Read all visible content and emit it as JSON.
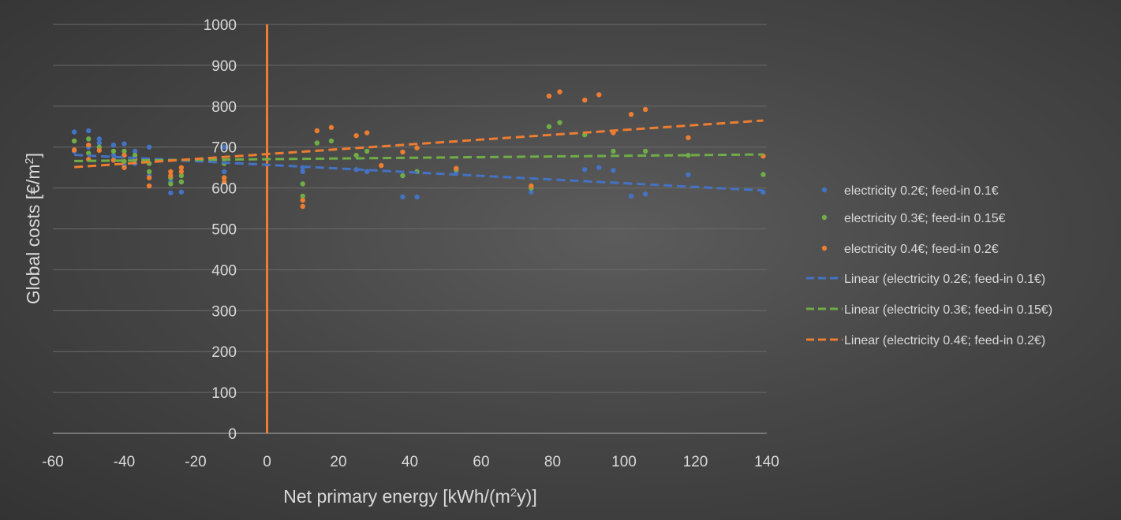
{
  "chart_data": {
    "type": "scatter",
    "xlabel": {
      "pre": "Net  primary energy [kWh/(m",
      "sup": "2",
      "post": "y)]"
    },
    "ylabel": {
      "pre": "Global costs [€/m",
      "sup": "2",
      "post": "]"
    },
    "xlim": [
      -60,
      140
    ],
    "ylim": [
      0,
      1000
    ],
    "xticks": [
      -60,
      -40,
      -20,
      0,
      20,
      40,
      60,
      80,
      100,
      120,
      140
    ],
    "yticks": [
      0,
      100,
      200,
      300,
      400,
      500,
      600,
      700,
      800,
      900,
      1000
    ],
    "grid": true,
    "legend_position": "right",
    "vertical_marker": {
      "x": 0,
      "y_range": [
        0,
        1000
      ],
      "color": "#ed7d31"
    },
    "series": [
      {
        "name": "electricity 0.2€; feed-in 0.1€",
        "color": "#4472c4",
        "points": [
          [
            -54,
            737
          ],
          [
            -54,
            690
          ],
          [
            -50,
            740
          ],
          [
            -50,
            700
          ],
          [
            -47,
            720
          ],
          [
            -47,
            710
          ],
          [
            -43,
            705
          ],
          [
            -43,
            680
          ],
          [
            -40,
            708
          ],
          [
            -40,
            655
          ],
          [
            -37,
            690
          ],
          [
            -37,
            660
          ],
          [
            -33,
            700
          ],
          [
            -33,
            630
          ],
          [
            -27,
            615
          ],
          [
            -27,
            588
          ],
          [
            -24,
            615
          ],
          [
            -24,
            590
          ],
          [
            -12,
            700
          ],
          [
            -12,
            640
          ],
          [
            10,
            650
          ],
          [
            10,
            640
          ],
          [
            25,
            645
          ],
          [
            28,
            640
          ],
          [
            38,
            578
          ],
          [
            42,
            578
          ],
          [
            53,
            640
          ],
          [
            74,
            590
          ],
          [
            89,
            645
          ],
          [
            93,
            650
          ],
          [
            97,
            643
          ],
          [
            102,
            580
          ],
          [
            106,
            585
          ],
          [
            118,
            632
          ],
          [
            139,
            590
          ]
        ],
        "trend_name": "Linear (electricity 0.2€; feed-in 0.1€)",
        "trend": [
          [
            -54,
            681
          ],
          [
            139,
            594
          ]
        ]
      },
      {
        "name": "electricity 0.3€; feed-in 0.15€",
        "color": "#70ad47",
        "points": [
          [
            -54,
            715
          ],
          [
            -50,
            720
          ],
          [
            -50,
            685
          ],
          [
            -47,
            700
          ],
          [
            -43,
            690
          ],
          [
            -40,
            690
          ],
          [
            -40,
            665
          ],
          [
            -37,
            680
          ],
          [
            -33,
            660
          ],
          [
            -33,
            640
          ],
          [
            -27,
            625
          ],
          [
            -27,
            610
          ],
          [
            -24,
            630
          ],
          [
            -24,
            615
          ],
          [
            -12,
            660
          ],
          [
            -12,
            625
          ],
          [
            10,
            610
          ],
          [
            10,
            580
          ],
          [
            14,
            710
          ],
          [
            18,
            715
          ],
          [
            25,
            680
          ],
          [
            28,
            690
          ],
          [
            38,
            630
          ],
          [
            42,
            640
          ],
          [
            53,
            645
          ],
          [
            74,
            600
          ],
          [
            79,
            750
          ],
          [
            82,
            760
          ],
          [
            89,
            730
          ],
          [
            97,
            690
          ],
          [
            106,
            690
          ],
          [
            118,
            680
          ],
          [
            139,
            633
          ]
        ],
        "trend_name": "Linear (electricity 0.3€; feed-in 0.15€)",
        "trend": [
          [
            -54,
            666
          ],
          [
            139,
            682
          ]
        ]
      },
      {
        "name": "electricity 0.4€; feed-in 0.2€",
        "color": "#ed7d31",
        "points": [
          [
            -54,
            693
          ],
          [
            -50,
            705
          ],
          [
            -50,
            670
          ],
          [
            -47,
            692
          ],
          [
            -43,
            668
          ],
          [
            -40,
            680
          ],
          [
            -40,
            650
          ],
          [
            -37,
            670
          ],
          [
            -33,
            625
          ],
          [
            -33,
            605
          ],
          [
            -27,
            640
          ],
          [
            -27,
            630
          ],
          [
            -24,
            650
          ],
          [
            -24,
            640
          ],
          [
            -12,
            625
          ],
          [
            -12,
            615
          ],
          [
            10,
            570
          ],
          [
            10,
            555
          ],
          [
            14,
            740
          ],
          [
            18,
            748
          ],
          [
            25,
            728
          ],
          [
            28,
            735
          ],
          [
            32,
            655
          ],
          [
            38,
            688
          ],
          [
            42,
            698
          ],
          [
            53,
            648
          ],
          [
            74,
            605
          ],
          [
            79,
            825
          ],
          [
            82,
            835
          ],
          [
            89,
            815
          ],
          [
            93,
            828
          ],
          [
            97,
            735
          ],
          [
            102,
            780
          ],
          [
            106,
            792
          ],
          [
            118,
            723
          ],
          [
            139,
            678
          ]
        ],
        "trend_name": "Linear (electricity 0.4€; feed-in 0.2€)",
        "trend": [
          [
            -54,
            651
          ],
          [
            139,
            765
          ]
        ]
      }
    ]
  }
}
